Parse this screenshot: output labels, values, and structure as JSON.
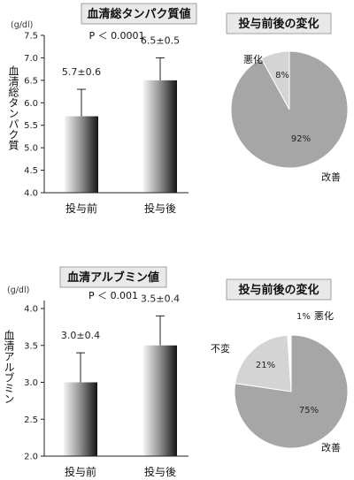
{
  "chart_data": [
    {
      "type": "bar",
      "title": "血清総タンパク質値",
      "ylabel": "血清総タンパク質",
      "unit": "(g/dl)",
      "pvalue": "P ＜ 0.0001",
      "categories": [
        "投与前",
        "投与後"
      ],
      "values": [
        5.7,
        6.5
      ],
      "errors": [
        0.6,
        0.5
      ],
      "labels": [
        "5.7±0.6",
        "6.5±0.5"
      ],
      "ylim": [
        4.0,
        7.5
      ],
      "yticks": [
        "4.0",
        "4.5",
        "5.0",
        "5.5",
        "6.0",
        "6.5",
        "7.0",
        "7.5"
      ],
      "grid": false
    },
    {
      "type": "pie",
      "title": "投与前後の変化",
      "slices": [
        {
          "label": "改善",
          "value": 92,
          "value_label": "92%",
          "color": "#a6a6a6"
        },
        {
          "label": "悪化",
          "value": 8,
          "value_label": "8%",
          "color": "#d4d4d4"
        }
      ]
    },
    {
      "type": "bar",
      "title": "血清アルブミン値",
      "ylabel": "血清アルブミン",
      "unit": "(g/dl)",
      "pvalue": "P ＜ 0.001",
      "categories": [
        "投与前",
        "投与後"
      ],
      "values": [
        3.0,
        3.5
      ],
      "errors": [
        0.4,
        0.4
      ],
      "labels": [
        "3.0±0.4",
        "3.5±0.4"
      ],
      "ylim": [
        2.0,
        4.0
      ],
      "yticks": [
        "2.0",
        "2.5",
        "3.0",
        "3.5",
        "4.0"
      ],
      "grid": false
    },
    {
      "type": "pie",
      "title": "投与前後の変化",
      "slices": [
        {
          "label": "改善",
          "value": 75,
          "value_label": "75%",
          "color": "#a6a6a6"
        },
        {
          "label": "不変",
          "value": 21,
          "value_label": "21%",
          "color": "#d4d4d4"
        },
        {
          "label": "悪化",
          "value": 1,
          "value_label": "1%",
          "color": "#ffffff"
        }
      ]
    }
  ]
}
